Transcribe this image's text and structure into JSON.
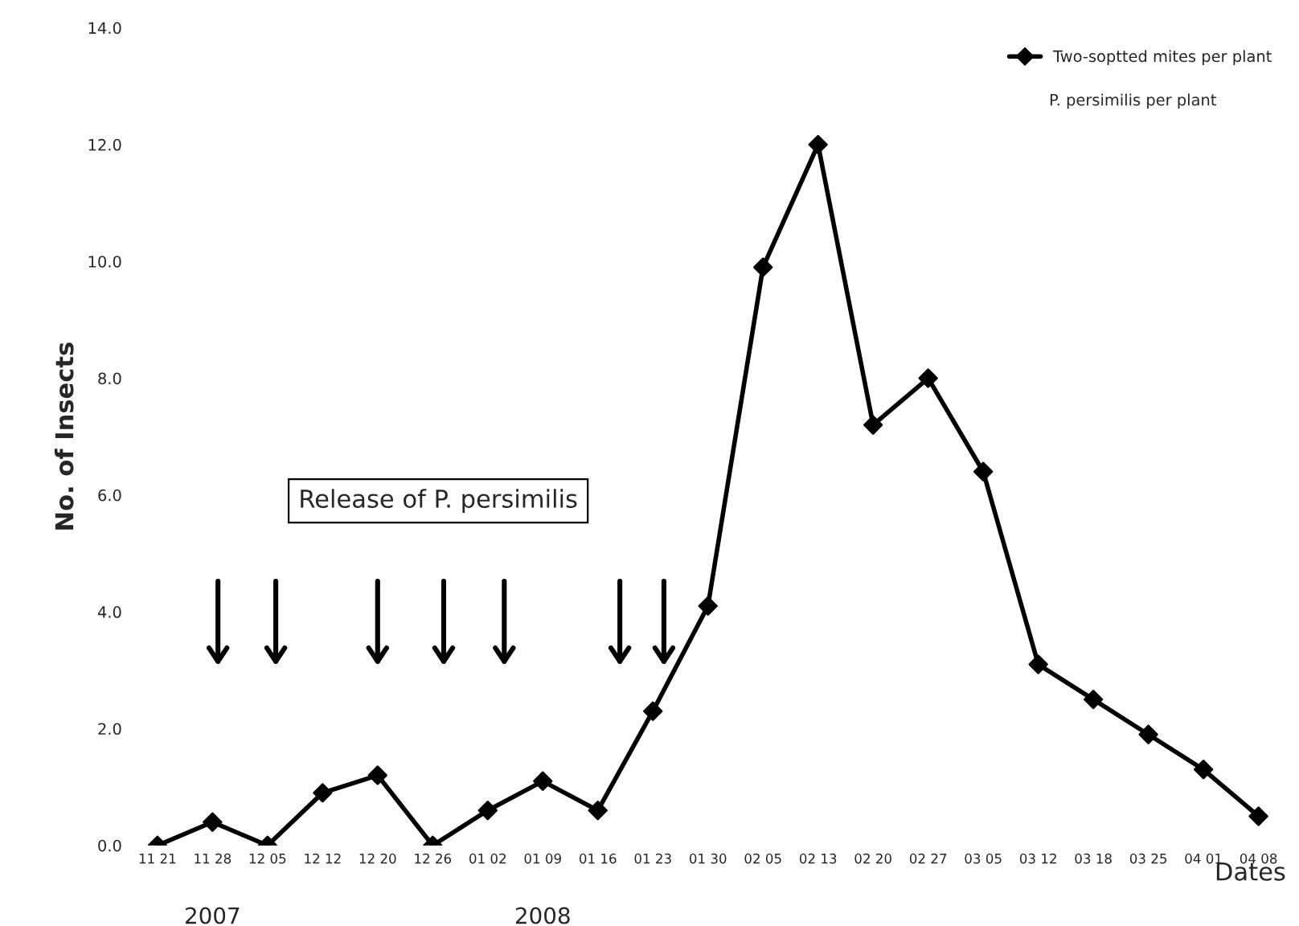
{
  "chart_data": {
    "type": "line",
    "xlabel": "Dates",
    "ylabel": "No. of Insects",
    "categories": [
      "11 21",
      "11 28",
      "12 05",
      "12 12",
      "12 20",
      "12 26",
      "01 02",
      "01 09",
      "01 16",
      "01 23",
      "01 30",
      "02 05",
      "02 13",
      "02 20",
      "02 27",
      "03 05",
      "03 12",
      "03 18",
      "03 25",
      "04 01",
      "04 08"
    ],
    "series": [
      {
        "name": "Two-soptted mites per plant",
        "color": "#000000",
        "values": [
          0.0,
          0.4,
          0.0,
          0.9,
          1.2,
          0.0,
          0.6,
          1.1,
          0.6,
          2.3,
          4.1,
          9.9,
          12.0,
          7.2,
          8.0,
          6.4,
          3.1,
          2.5,
          1.9,
          1.3,
          0.5
        ]
      }
    ],
    "marker": "diamond",
    "line_style": "solid",
    "ylim": [
      0,
      14
    ],
    "yticks": [
      {
        "value": 0,
        "label": "0.0"
      },
      {
        "value": 2,
        "label": "2.0"
      },
      {
        "value": 4,
        "label": "4.0"
      },
      {
        "value": 6,
        "label": "6.0"
      },
      {
        "value": 8,
        "label": "8.0"
      },
      {
        "value": 10,
        "label": "10.0"
      },
      {
        "value": 12,
        "label": "12.0"
      },
      {
        "value": 14,
        "label": "14.0"
      }
    ],
    "grid": false,
    "legend": "top right",
    "annotations": [
      "P. persimilis per plant",
      "Release of P. persimilis",
      "2007",
      "2008"
    ]
  }
}
